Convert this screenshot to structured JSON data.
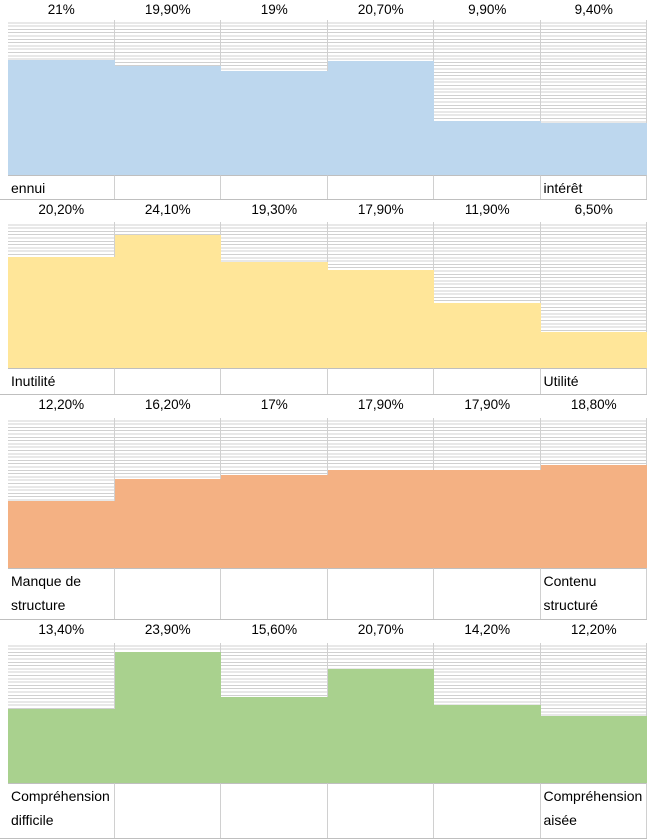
{
  "chart_data": [
    {
      "type": "bar",
      "categories": [
        "ennui",
        null,
        null,
        null,
        null,
        "intérêt"
      ],
      "values": [
        21,
        19.9,
        19,
        20.7,
        9.9,
        9.4
      ],
      "value_labels": [
        "21%",
        "19,90%",
        "19%",
        "20,70%",
        "9,90%",
        "9,40%"
      ],
      "color": "#bdd7ee",
      "ylim": [
        0,
        25
      ]
    },
    {
      "type": "bar",
      "categories": [
        "Inutilité",
        null,
        null,
        null,
        null,
        "Utilité"
      ],
      "values": [
        20.2,
        24.1,
        19.3,
        17.9,
        11.9,
        6.5
      ],
      "value_labels": [
        "20,20%",
        "24,10%",
        "19,30%",
        "17,90%",
        "11,90%",
        "6,50%"
      ],
      "color": "#ffe699",
      "ylim": [
        0,
        25
      ]
    },
    {
      "type": "bar",
      "categories": [
        "Manque de structure",
        null,
        null,
        null,
        null,
        "Contenu structuré"
      ],
      "values": [
        12.2,
        16.2,
        17,
        17.9,
        17.9,
        18.8
      ],
      "value_labels": [
        "12,20%",
        "16,20%",
        "17%",
        "17,90%",
        "17,90%",
        "18,80%"
      ],
      "color": "#f4b183",
      "ylim": [
        0,
        25
      ]
    },
    {
      "type": "bar",
      "categories": [
        "Compréhension difficile",
        null,
        null,
        null,
        null,
        "Compréhension aisée"
      ],
      "values": [
        13.4,
        23.9,
        15.6,
        20.7,
        14.2,
        12.2
      ],
      "value_labels": [
        "13,40%",
        "23,90%",
        "15,60%",
        "20,70%",
        "14,20%",
        "12,20%"
      ],
      "color": "#a9d18e",
      "ylim": [
        0,
        25
      ]
    }
  ]
}
